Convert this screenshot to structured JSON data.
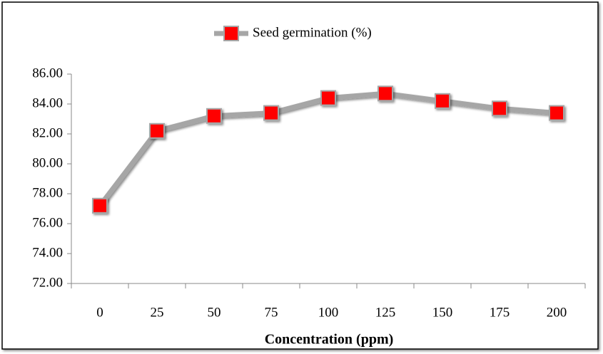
{
  "chart_data": {
    "type": "line",
    "categories": [
      "0",
      "25",
      "50",
      "75",
      "100",
      "125",
      "150",
      "175",
      "200"
    ],
    "series": [
      {
        "name": "Seed germination (%)",
        "color": "#a6a6a6",
        "marker_color": "#ff0000",
        "values": [
          77.2,
          82.2,
          83.2,
          83.4,
          84.4,
          84.7,
          84.2,
          83.7,
          83.4
        ]
      }
    ],
    "x_label": "Concentration (ppm)",
    "ylim": [
      72,
      86
    ],
    "yticks": [
      {
        "value": 72,
        "label": "72.00"
      },
      {
        "value": 74,
        "label": "74.00"
      },
      {
        "value": 76,
        "label": "76.00"
      },
      {
        "value": 78,
        "label": "78.00"
      },
      {
        "value": 80,
        "label": "80.00"
      },
      {
        "value": 82,
        "label": "82.00"
      },
      {
        "value": 84,
        "label": "84.00"
      },
      {
        "value": 86,
        "label": "86.00"
      }
    ],
    "legend": "top"
  }
}
